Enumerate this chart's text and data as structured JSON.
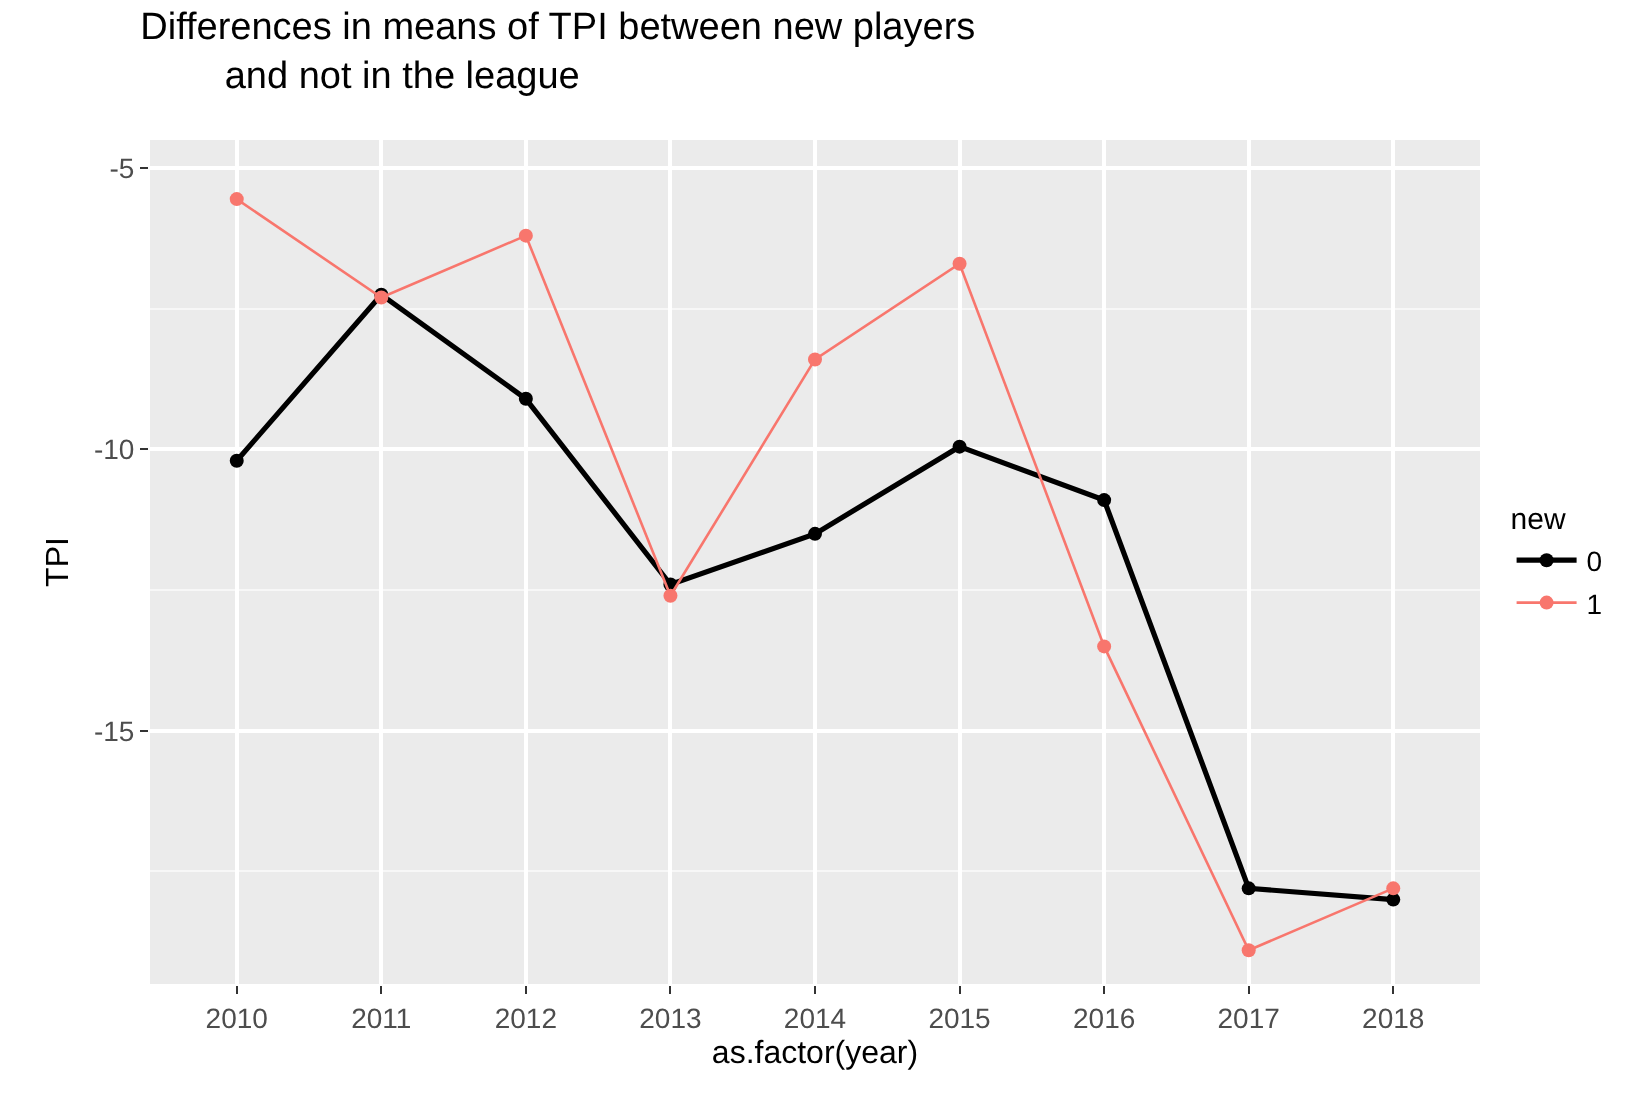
{
  "chart_data": {
    "type": "line",
    "title": "Differences in means of TPI between new players\n        and not in the league",
    "xlabel": "as.factor(year)",
    "ylabel": "TPI",
    "legend_title": "new",
    "categories": [
      "2010",
      "2011",
      "2012",
      "2013",
      "2014",
      "2015",
      "2016",
      "2017",
      "2018"
    ],
    "series": [
      {
        "name": "0",
        "color": "#000000",
        "values": [
          -10.2,
          -7.25,
          -9.1,
          -12.4,
          -11.5,
          -9.95,
          -10.9,
          -17.8,
          -18.0
        ]
      },
      {
        "name": "1",
        "color": "#f8766d",
        "values": [
          -5.55,
          -7.3,
          -6.2,
          -12.6,
          -8.4,
          -6.7,
          -13.5,
          -18.9,
          -17.8
        ]
      }
    ],
    "ylim": [
      -19.5,
      -4.5
    ],
    "yticks": [
      -5,
      -10,
      -15
    ],
    "grid": true,
    "legend": "right",
    "marker": "circle",
    "line_style": "solid"
  }
}
